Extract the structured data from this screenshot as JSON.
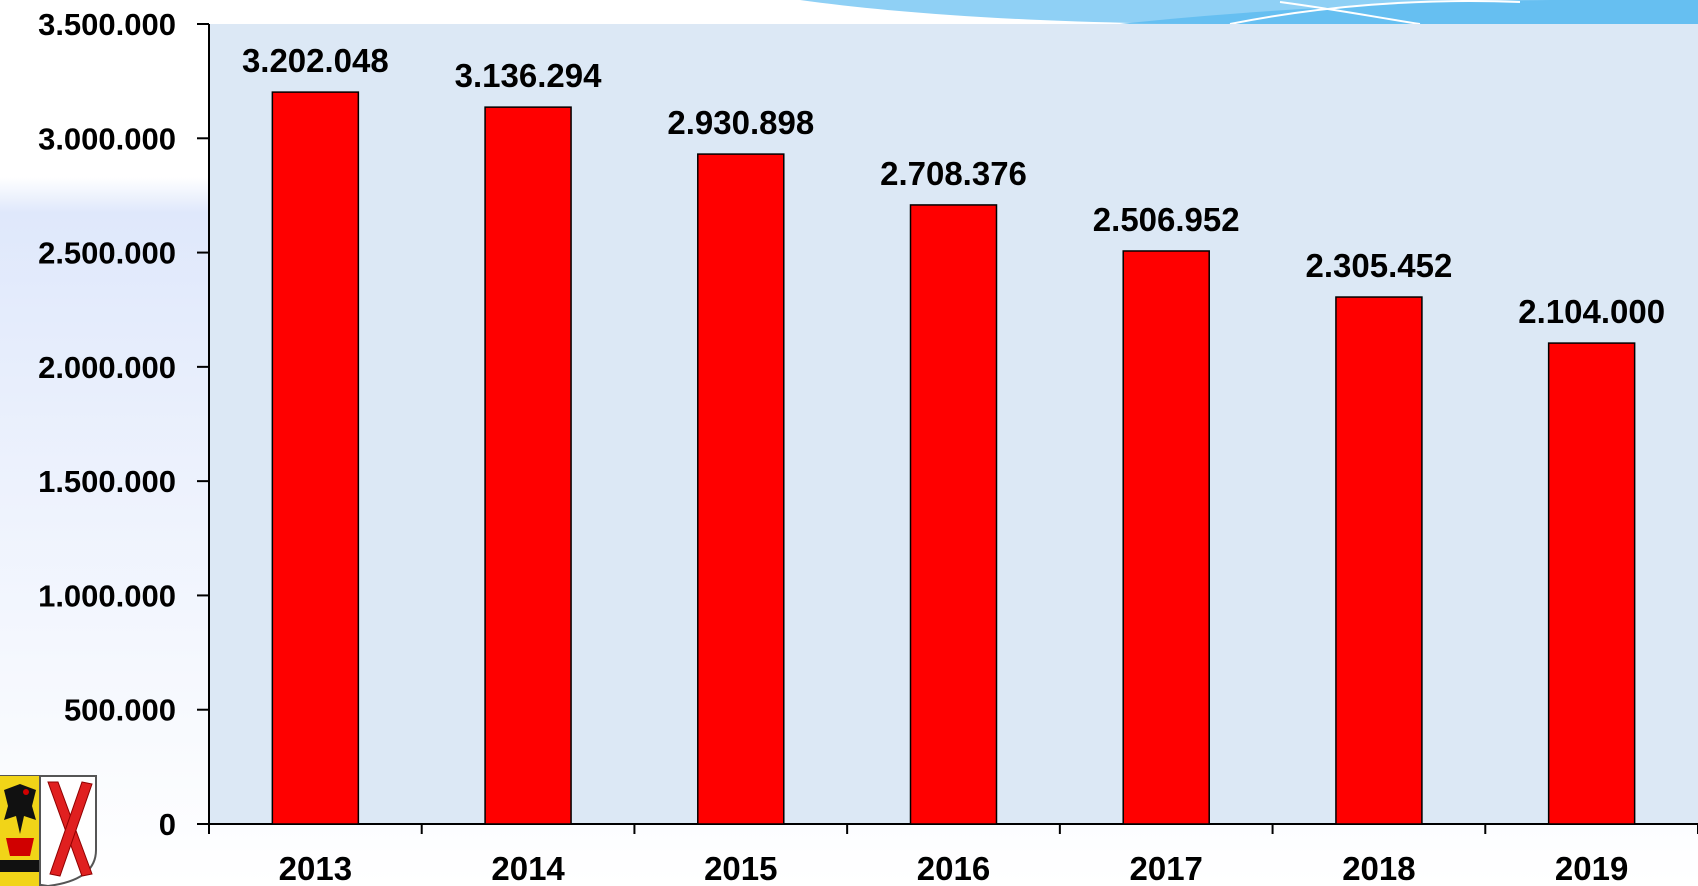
{
  "colors": {
    "bar_fill": "#ff0000",
    "bar_stroke": "#000000",
    "plot_background": "#dce8f5",
    "header_swoosh": "#6ec3f2"
  },
  "logo": {
    "icon": "coat-of-arms-icon"
  },
  "chart_data": {
    "type": "bar",
    "title": "",
    "xlabel": "",
    "ylabel": "",
    "categories": [
      "2013",
      "2014",
      "2015",
      "2016",
      "2017",
      "2018",
      "2019"
    ],
    "values": [
      3202048,
      3136294,
      2930898,
      2708376,
      2506952,
      2305452,
      2104000
    ],
    "value_labels": [
      "3.202.048",
      "3.136.294",
      "2.930.898",
      "2.708.376",
      "2.506.952",
      "2.305.452",
      "2.104.000"
    ],
    "ylim": [
      0,
      3500000
    ],
    "yticks": [
      0,
      500000,
      1000000,
      1500000,
      2000000,
      2500000,
      3000000,
      3500000
    ],
    "ytick_labels": [
      "0",
      "500.000",
      "1.000.000",
      "1.500.000",
      "2.000.000",
      "2.500.000",
      "3.000.000",
      "3.500.000"
    ],
    "grid": false,
    "legend": "none"
  }
}
